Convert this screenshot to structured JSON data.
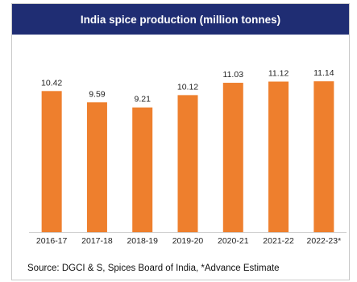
{
  "chart_data": {
    "type": "bar",
    "title": "India spice production (million tonnes)",
    "categories": [
      "2016-17",
      "2017-18",
      "2018-19",
      "2019-20",
      "2020-21",
      "2021-22",
      "2022-23*"
    ],
    "values": [
      10.42,
      9.59,
      9.21,
      10.12,
      11.03,
      11.12,
      11.14
    ],
    "data_labels": [
      "10.42",
      "9.59",
      "9.21",
      "10.12",
      "11.03",
      "11.12",
      "11.14"
    ],
    "xlabel": "",
    "ylabel": "",
    "ylim": [
      0,
      12.1
    ],
    "grid": false,
    "bar_color": "#ee7f2d",
    "title_bg_color": "#1f2d73",
    "source": "Source: DGCI & S, Spices Board of India, *Advance Estimate"
  }
}
